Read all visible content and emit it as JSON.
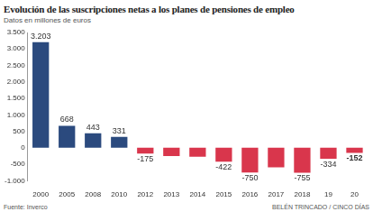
{
  "chart_data": {
    "type": "bar",
    "title": "Evolución de las suscripciones netas a los planes de pensiones de empleo",
    "subtitle": "Datos en millones de euros",
    "source": "Fuente: Inverco",
    "credit": "BELÉN TRINCADO / CINCO DÍAS",
    "categories": [
      "2000",
      "2005",
      "2008",
      "2010",
      "2012",
      "2013",
      "2014",
      "2015",
      "2016",
      "2017",
      "2018",
      "19",
      "20"
    ],
    "values": [
      3203,
      668,
      443,
      331,
      -175,
      -250,
      -270,
      -422,
      -750,
      -590,
      -755,
      -334,
      -152
    ],
    "value_labels": [
      "3.203",
      "668",
      "443",
      "331",
      "-175",
      null,
      null,
      "-422",
      "-750",
      null,
      "-755",
      "-334",
      "-152"
    ],
    "data_labels": true,
    "colors": [
      "#2b4a7e",
      "#2b4a7e",
      "#2b4a7e",
      "#2b4a7e",
      "#d9364c",
      "#d9364c",
      "#d9364c",
      "#d9364c",
      "#d9364c",
      "#d9364c",
      "#d9364c",
      "#d9364c",
      "#d9364c"
    ],
    "ylim": [
      -1000,
      3500
    ],
    "yticks": [
      {
        "value": -1000,
        "label": "-1.000"
      },
      -500,
      0,
      500,
      {
        "value": 1000,
        "label": "1.000"
      },
      {
        "value": 1500,
        "label": "1.500"
      },
      {
        "value": 2000,
        "label": "2.000"
      },
      {
        "value": 2500,
        "label": "2.500"
      },
      {
        "value": 3000,
        "label": "3.000"
      },
      {
        "value": 3500,
        "label": "3.500"
      }
    ],
    "grid": false
  }
}
